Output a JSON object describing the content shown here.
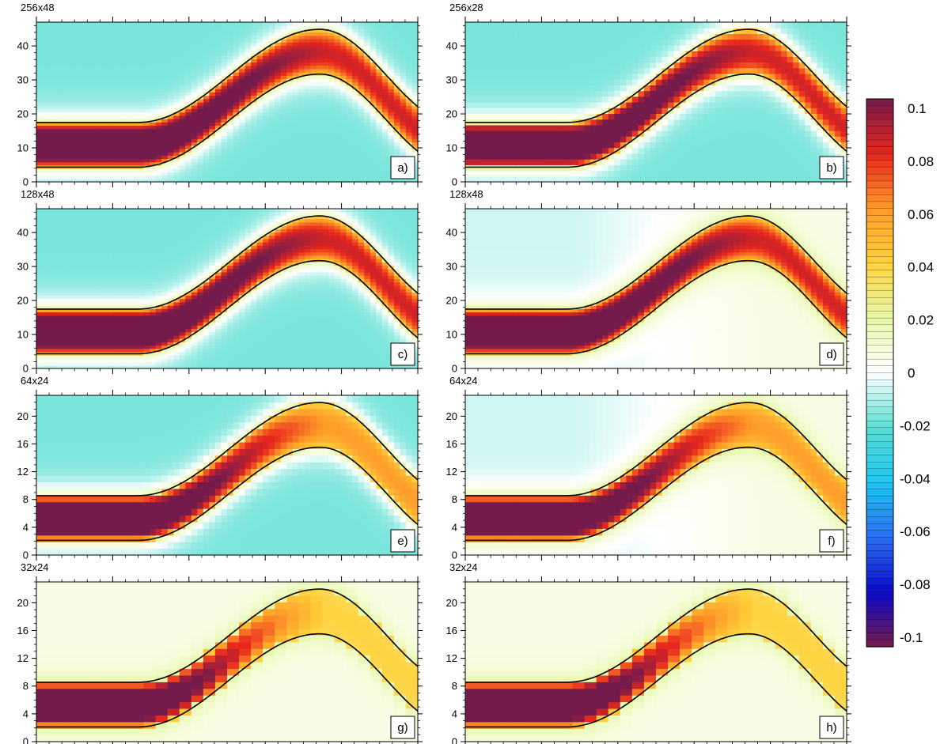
{
  "figure": {
    "palette": {
      "-0.1": "#751b4c",
      "-0.08": "#0a0acc",
      "-0.06": "#2a6ef0",
      "-0.04": "#1fc6f2",
      "-0.02": "#58dfd2",
      "0": "#ffffff",
      "0.02": "#e6f8a8",
      "0.04": "#ffd23c",
      "0.06": "#ff9a28",
      "0.08": "#e8261e",
      "0.1": "#751b4c"
    },
    "colorbar": {
      "ticks": [
        "0.1",
        "0.08",
        "0.06",
        "0.04",
        "0.02",
        "0",
        "-0.02",
        "-0.04",
        "-0.06",
        "-0.08",
        "-0.1"
      ]
    }
  },
  "chart_data": [
    {
      "type": "heatmap",
      "title": "256x48",
      "panel_label": "a)",
      "resolution": [
        256,
        48
      ],
      "ylim": [
        0,
        47
      ],
      "yticks": [
        0,
        10,
        20,
        30,
        40
      ],
      "band_intensity": "high",
      "background_sign": "negative"
    },
    {
      "type": "heatmap",
      "title": "256x28",
      "panel_label": "b)",
      "resolution": [
        256,
        28
      ],
      "ylim": [
        0,
        47
      ],
      "yticks": [
        0,
        10,
        20,
        30,
        40
      ],
      "band_intensity": "high",
      "background_sign": "negative"
    },
    {
      "type": "heatmap",
      "title": "128x48",
      "panel_label": "c)",
      "resolution": [
        128,
        48
      ],
      "ylim": [
        0,
        47
      ],
      "yticks": [
        0,
        10,
        20,
        30,
        40
      ],
      "band_intensity": "high",
      "background_sign": "negative"
    },
    {
      "type": "heatmap",
      "title": "128x48",
      "panel_label": "d)",
      "resolution": [
        128,
        48
      ],
      "ylim": [
        0,
        47
      ],
      "yticks": [
        0,
        10,
        20,
        30,
        40
      ],
      "band_intensity": "high",
      "background_sign": "mixed"
    },
    {
      "type": "heatmap",
      "title": "64x24",
      "panel_label": "e)",
      "resolution": [
        64,
        24
      ],
      "ylim": [
        0,
        23
      ],
      "yticks": [
        0,
        4,
        8,
        12,
        16,
        20
      ],
      "band_intensity": "medium",
      "background_sign": "negative"
    },
    {
      "type": "heatmap",
      "title": "64x24",
      "panel_label": "f)",
      "resolution": [
        64,
        24
      ],
      "ylim": [
        0,
        23
      ],
      "yticks": [
        0,
        4,
        8,
        12,
        16,
        20
      ],
      "band_intensity": "medium",
      "background_sign": "mixed"
    },
    {
      "type": "heatmap",
      "title": "32x24",
      "panel_label": "g)",
      "resolution": [
        32,
        24
      ],
      "ylim": [
        0,
        23
      ],
      "yticks": [
        0,
        4,
        8,
        12,
        16,
        20
      ],
      "band_intensity": "low",
      "background_sign": "positive"
    },
    {
      "type": "heatmap",
      "title": "32x24",
      "panel_label": "h)",
      "resolution": [
        32,
        24
      ],
      "ylim": [
        0,
        23
      ],
      "yticks": [
        0,
        4,
        8,
        12,
        16,
        20
      ],
      "band_intensity": "low",
      "background_sign": "positive"
    }
  ]
}
